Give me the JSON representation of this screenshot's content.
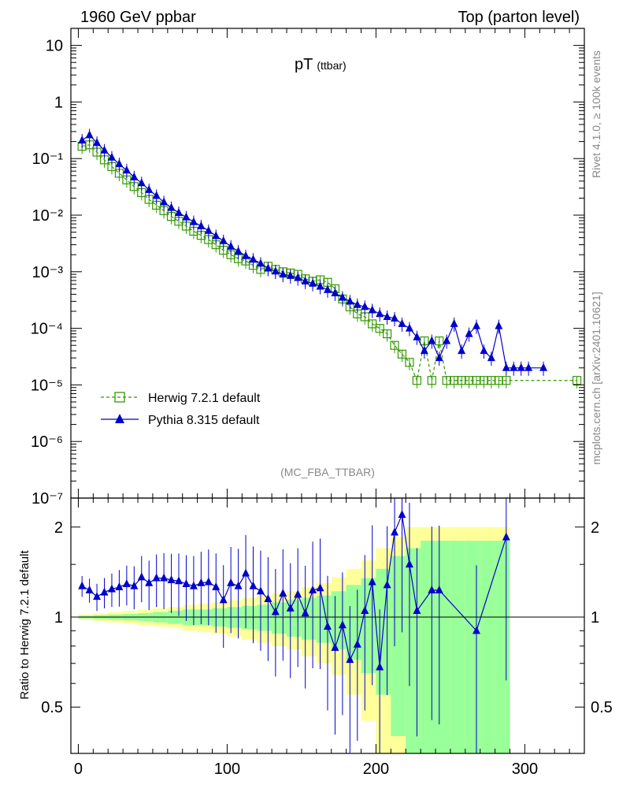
{
  "header": {
    "left": "1960 GeV ppbar",
    "right": "Top (parton level)"
  },
  "side": {
    "rivet": "Rivet 4.1.0, ≥ 100k events",
    "mcplots": "mcplots.cern.ch [arXiv:2401.10621]"
  },
  "chart_data": [
    {
      "type": "line",
      "title": "pT",
      "title_sub": "(ttbar)",
      "analysis_tag": "(MC_FBA_TTBAR)",
      "yscale": "log",
      "xlim": [
        -5,
        340
      ],
      "ylim": [
        1e-07,
        20
      ],
      "ytick_labels": [
        "10",
        "1",
        "10⁻¹",
        "10⁻²",
        "10⁻³",
        "10⁻⁴",
        "10⁻⁵",
        "10⁻⁶",
        "10⁻⁷"
      ],
      "legend": [
        {
          "label": "Herwig 7.2.1 default",
          "color": "#339900",
          "marker": "open-square",
          "dash": true
        },
        {
          "label": "Pythia 8.315 default",
          "color": "#0000cc",
          "marker": "filled-triangle",
          "dash": false
        }
      ],
      "legend_position": "bottom-left",
      "series": [
        {
          "name": "Herwig 7.2.1 default",
          "x": [
            2.5,
            7.5,
            12.5,
            17.5,
            22.5,
            27.5,
            32.5,
            37.5,
            42.5,
            47.5,
            52.5,
            57.5,
            62.5,
            67.5,
            72.5,
            77.5,
            82.5,
            87.5,
            92.5,
            97.5,
            102.5,
            107.5,
            112.5,
            117.5,
            122.5,
            127.5,
            132.5,
            137.5,
            142.5,
            147.5,
            152.5,
            157.5,
            162.5,
            167.5,
            172.5,
            177.5,
            182.5,
            187.5,
            192.5,
            197.5,
            202.5,
            207.5,
            212.5,
            217.5,
            222.5,
            227.5,
            232.5,
            237.5,
            242.5,
            247.5,
            252.5,
            257.5,
            262.5,
            267.5,
            272.5,
            277.5,
            282.5,
            287.5,
            335
          ],
          "values": [
            0.165,
            0.175,
            0.13,
            0.095,
            0.072,
            0.055,
            0.042,
            0.032,
            0.025,
            0.019,
            0.015,
            0.012,
            0.0095,
            0.0078,
            0.0064,
            0.0052,
            0.0044,
            0.0037,
            0.003,
            0.0024,
            0.002,
            0.0017,
            0.00155,
            0.0013,
            0.0011,
            0.00125,
            0.0011,
            0.001,
            0.00095,
            0.0009,
            0.00075,
            0.00068,
            0.00072,
            0.00065,
            0.0005,
            0.00033,
            0.00024,
            0.00018,
            0.00016,
            0.00012,
            0.0001,
            8e-05,
            5e-05,
            3.5e-05,
            2.5e-05,
            1.2e-05,
            6e-05,
            1.2e-05,
            6e-05,
            1.2e-05,
            1.2e-05,
            1.2e-05,
            1.2e-05,
            1.2e-05,
            1.2e-05,
            1.2e-05,
            1.2e-05,
            1.2e-05,
            1.2e-05
          ]
        },
        {
          "name": "Pythia 8.315 default",
          "x": [
            2.5,
            7.5,
            12.5,
            17.5,
            22.5,
            27.5,
            32.5,
            37.5,
            42.5,
            47.5,
            52.5,
            57.5,
            62.5,
            67.5,
            72.5,
            77.5,
            82.5,
            87.5,
            92.5,
            97.5,
            102.5,
            107.5,
            112.5,
            117.5,
            122.5,
            127.5,
            132.5,
            137.5,
            142.5,
            147.5,
            152.5,
            157.5,
            162.5,
            167.5,
            172.5,
            177.5,
            182.5,
            187.5,
            192.5,
            197.5,
            202.5,
            207.5,
            212.5,
            217.5,
            222.5,
            227.5,
            232.5,
            237.5,
            242.5,
            247.5,
            252.5,
            257.5,
            262.5,
            267.5,
            272.5,
            277.5,
            282.5,
            287.5,
            292.5,
            297.5,
            302.5,
            312.5
          ],
          "values": [
            0.21,
            0.26,
            0.19,
            0.14,
            0.105,
            0.08,
            0.062,
            0.047,
            0.037,
            0.028,
            0.022,
            0.017,
            0.0135,
            0.011,
            0.0092,
            0.0076,
            0.0064,
            0.0053,
            0.0043,
            0.0035,
            0.0028,
            0.0023,
            0.0019,
            0.00165,
            0.0014,
            0.00115,
            0.00102,
            0.0009,
            0.00085,
            0.00078,
            0.00068,
            0.00062,
            0.00055,
            0.00048,
            0.00042,
            0.00035,
            0.0003,
            0.00026,
            0.00024,
            0.00021,
            0.00018,
            0.00016,
            0.00015,
            0.00012,
            0.0001,
            7e-05,
            4e-05,
            6e-05,
            3e-05,
            6e-05,
            0.00012,
            4e-05,
            8e-05,
            0.00011,
            4e-05,
            3e-05,
            0.00011,
            2e-05,
            2e-05,
            2e-05,
            2e-05,
            2e-05
          ]
        }
      ]
    },
    {
      "type": "line",
      "ylabel": "Ratio to Herwig 7.2.1 default",
      "xlim": [
        -5,
        340
      ],
      "ylim": [
        0.35,
        2.5
      ],
      "yscale": "log",
      "xtick_labels": [
        "0",
        "100",
        "200",
        "300"
      ],
      "ytick_labels": [
        "2",
        "1",
        "0.5"
      ],
      "band_inner_color": "#99ff99",
      "band_outer_color": "#ffff99",
      "bands": {
        "x_edges": [
          0,
          10,
          20,
          30,
          40,
          50,
          60,
          70,
          80,
          90,
          100,
          110,
          120,
          130,
          140,
          150,
          160,
          170,
          180,
          190,
          200,
          210,
          220,
          230,
          240,
          250,
          260,
          270,
          280,
          290
        ],
        "inner": [
          0.01,
          0.015,
          0.02,
          0.025,
          0.03,
          0.04,
          0.05,
          0.06,
          0.06,
          0.07,
          0.08,
          0.09,
          0.1,
          0.12,
          0.14,
          0.16,
          0.18,
          0.22,
          0.28,
          0.35,
          0.45,
          0.6,
          0.7,
          0.8,
          0.8,
          0.8,
          0.8,
          0.8,
          0.8
        ],
        "outer": [
          0.02,
          0.03,
          0.04,
          0.05,
          0.06,
          0.07,
          0.08,
          0.1,
          0.11,
          0.12,
          0.14,
          0.16,
          0.18,
          0.2,
          0.22,
          0.26,
          0.3,
          0.36,
          0.45,
          0.55,
          0.7,
          0.85,
          1.0,
          1.0,
          1.0,
          1.0,
          1.0,
          1.0,
          1.0
        ]
      },
      "series": [
        {
          "name": "Pythia 8.315 default",
          "x": [
            2.5,
            7.5,
            12.5,
            17.5,
            22.5,
            27.5,
            32.5,
            37.5,
            42.5,
            47.5,
            52.5,
            57.5,
            62.5,
            67.5,
            72.5,
            77.5,
            82.5,
            87.5,
            92.5,
            97.5,
            102.5,
            107.5,
            112.5,
            117.5,
            122.5,
            127.5,
            132.5,
            137.5,
            142.5,
            147.5,
            152.5,
            157.5,
            162.5,
            167.5,
            172.5,
            177.5,
            182.5,
            187.5,
            192.5,
            197.5,
            202.5,
            207.5,
            212.5,
            217.5,
            222.5,
            227.5,
            237.5,
            242.5,
            267.5,
            287.5
          ],
          "values": [
            1.27,
            1.23,
            1.17,
            1.21,
            1.24,
            1.26,
            1.29,
            1.27,
            1.36,
            1.3,
            1.35,
            1.35,
            1.33,
            1.32,
            1.29,
            1.27,
            1.3,
            1.31,
            1.26,
            1.14,
            1.3,
            1.27,
            1.4,
            1.27,
            1.22,
            1.15,
            1.04,
            1.2,
            1.07,
            1.19,
            1.03,
            1.23,
            1.25,
            0.93,
            0.79,
            0.94,
            0.72,
            0.81,
            1.05,
            1.31,
            0.68,
            1.28,
            1.92,
            2.2,
            1.5,
            1.05,
            1.23,
            1.23,
            0.9,
            1.85
          ]
        }
      ]
    }
  ]
}
